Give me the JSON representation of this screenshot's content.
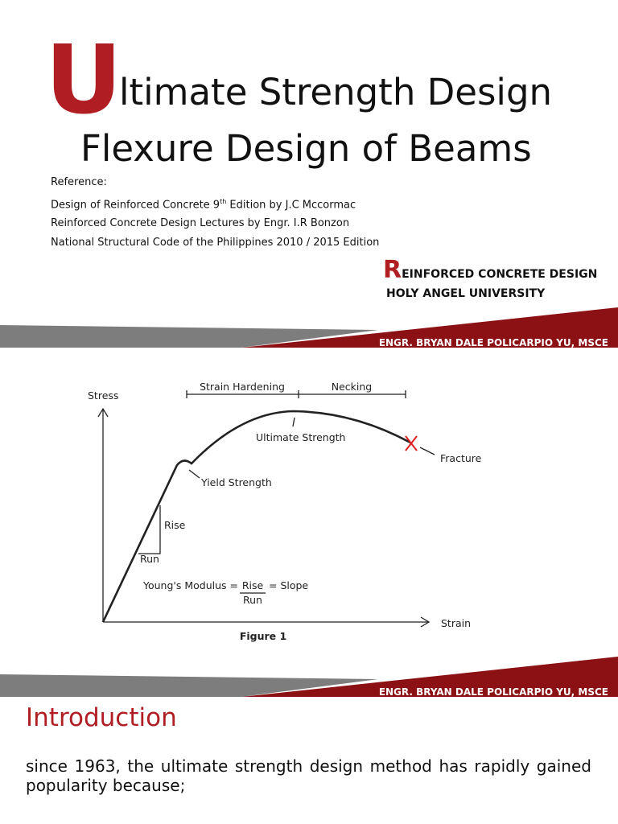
{
  "slide1": {
    "title_initial": "U",
    "title_rest": "ltimate Strength Design",
    "title_line2": "Flexure Design of Beams",
    "reference_heading": "Reference:",
    "references": [
      {
        "before": "Design of Reinforced Concrete 9",
        "sup": "th",
        "after": " Edition by J.C Mccormac"
      },
      {
        "before": "Reinforced Concrete Design Lectures by Engr. I.R Bonzon"
      },
      {
        "before": "National Structural Code of the Philippines 2010 / 2015 Edition"
      }
    ],
    "course_initial": "R",
    "course_rest": "EINFORCED CONCRETE DESIGN",
    "university": "HOLY ANGEL UNIVERSITY",
    "footer": "ENGR. BRYAN DALE POLICARPIO YU, MSCE"
  },
  "slide2": {
    "figure": {
      "y_axis": "Stress",
      "x_axis": "Strain",
      "strain_hardening": "Strain Hardening",
      "necking": "Necking",
      "ultimate": "Ultimate Strength",
      "fracture": "Fracture",
      "yield": "Yield Strength",
      "rise": "Rise",
      "run": "Run",
      "formula_left": "Young's Modulus =",
      "formula_num": "Rise",
      "formula_den": "Run",
      "formula_right": "= Slope",
      "caption": "Figure 1"
    },
    "footer": "ENGR. BRYAN DALE POLICARPIO YU, MSCE"
  },
  "slide3": {
    "heading": "Introduction",
    "paragraph": "since 1963, the ultimate strength design method has rapidly gained popularity because;"
  }
}
